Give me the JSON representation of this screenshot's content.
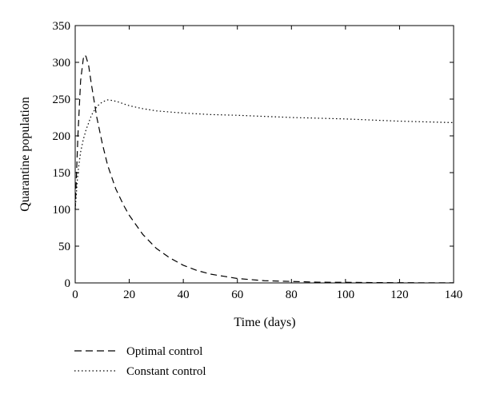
{
  "chart_data": {
    "type": "line",
    "xlabel": "Time (days)",
    "ylabel": "Quarantine population",
    "xlim": [
      0,
      140
    ],
    "ylim": [
      0,
      350
    ],
    "xticks": [
      0,
      20,
      40,
      60,
      80,
      100,
      120,
      140
    ],
    "yticks": [
      0,
      50,
      100,
      150,
      200,
      250,
      300,
      350
    ],
    "grid": false,
    "legend_placement": "bottom-left, below plot",
    "series": [
      {
        "name": "Optimal control",
        "style": "dashed",
        "color": "#000000",
        "x": [
          0,
          1,
          2,
          3,
          3.5,
          4,
          5,
          6,
          8,
          10,
          12,
          15,
          18,
          20,
          25,
          30,
          35,
          40,
          45,
          50,
          55,
          60,
          70,
          80,
          90,
          100,
          110,
          120,
          130,
          140
        ],
        "y": [
          100,
          200,
          275,
          305,
          310,
          308,
          295,
          270,
          225,
          190,
          160,
          128,
          105,
          92,
          66,
          47,
          34,
          24,
          17,
          12,
          9,
          6,
          3,
          2,
          1,
          0.8,
          0.5,
          0.3,
          0.2,
          0.1
        ]
      },
      {
        "name": "Constant control",
        "style": "dotted",
        "color": "#000000",
        "x": [
          0,
          1,
          2,
          3,
          4,
          6,
          8,
          10,
          12,
          14,
          16,
          20,
          25,
          30,
          40,
          50,
          60,
          80,
          100,
          120,
          140
        ],
        "y": [
          100,
          150,
          178,
          195,
          208,
          228,
          240,
          246,
          249,
          248,
          246,
          241,
          237,
          234,
          231,
          229,
          228,
          225,
          223,
          220,
          218
        ]
      }
    ]
  }
}
